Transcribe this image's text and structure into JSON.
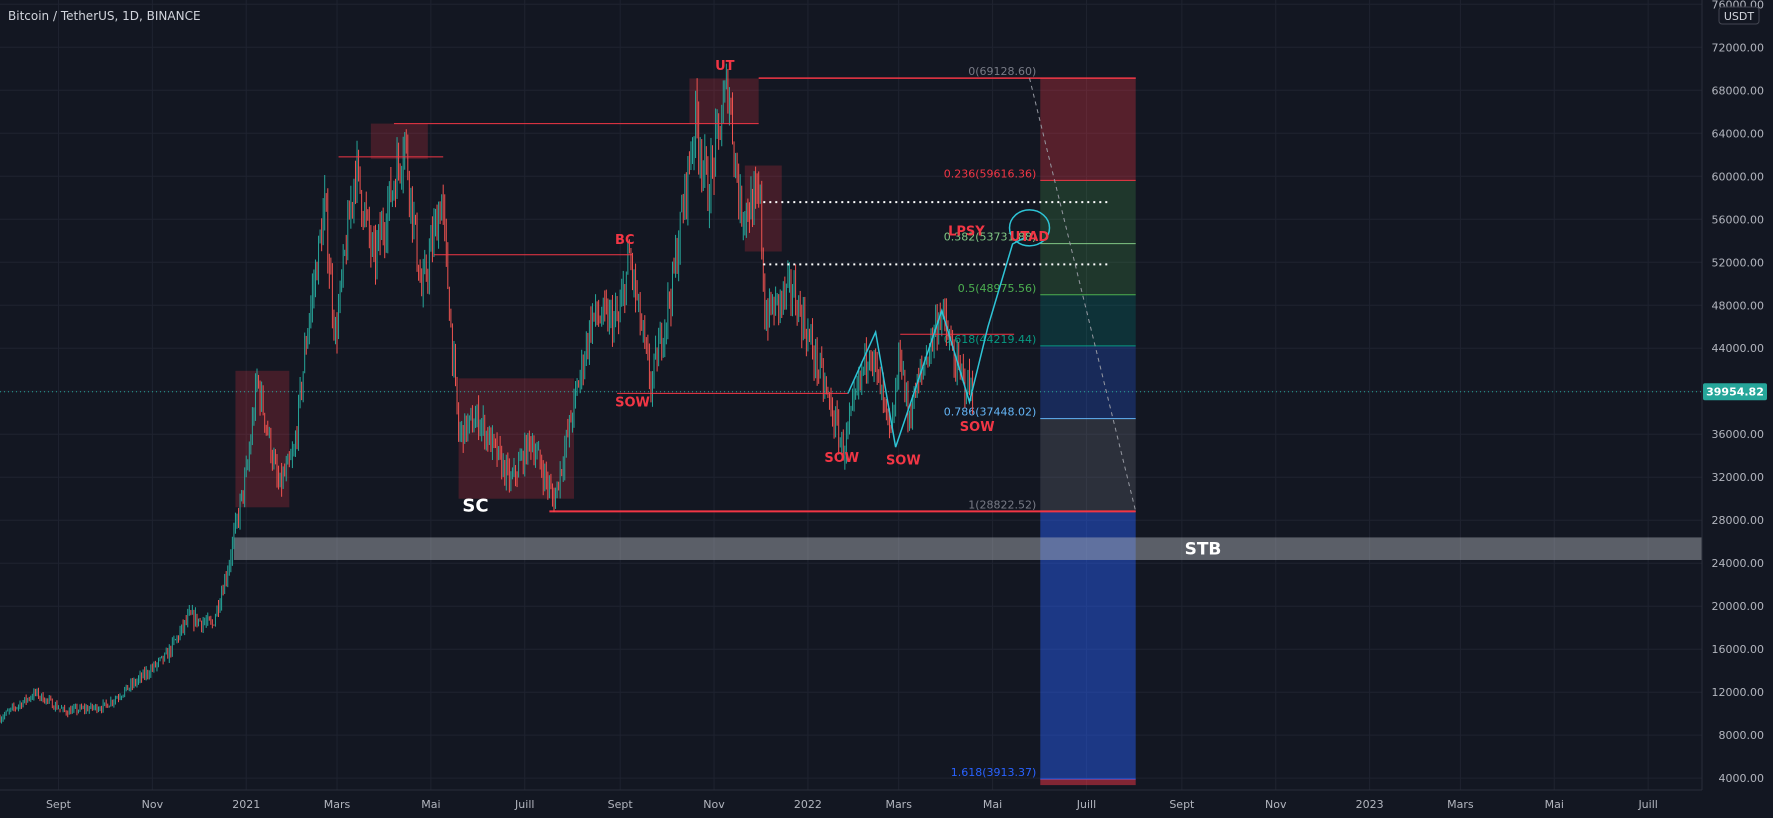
{
  "header": {
    "title": "Bitcoin / TetherUS, 1D, BINANCE",
    "currency": "USDT",
    "last_price": "39954.82"
  },
  "colors": {
    "background": "#131722",
    "grid": "#1f2330",
    "text": "#b2b5be",
    "candle_up": "#26a69a",
    "candle_down": "#ef5350",
    "annotation_red": "#f23645",
    "price_badge": "#26a69a",
    "cyan_path": "#2ec4d6"
  },
  "chart_data": {
    "type": "candlestick",
    "x_axis": {
      "labels": [
        "Sept",
        "Nov",
        "2021",
        "Mars",
        "Mai",
        "Juill",
        "Sept",
        "Nov",
        "2022",
        "Mars",
        "Mai",
        "Juill",
        "Sept",
        "Nov",
        "2023",
        "Mars",
        "Mai",
        "Juill"
      ],
      "dates": [
        "2020-09-01",
        "2020-11-01",
        "2021-01-01",
        "2021-03-01",
        "2021-05-01",
        "2021-07-01",
        "2021-09-01",
        "2021-11-01",
        "2022-01-01",
        "2022-03-01",
        "2022-05-01",
        "2022-07-01",
        "2022-09-01",
        "2022-11-01",
        "2023-01-01",
        "2023-03-01",
        "2023-05-01",
        "2023-07-01"
      ],
      "range": [
        "2020-07-25",
        "2023-08-05"
      ]
    },
    "y_axis": {
      "ticks": [
        4000,
        8000,
        12000,
        16000,
        20000,
        24000,
        28000,
        32000,
        36000,
        40000,
        44000,
        48000,
        52000,
        56000,
        60000,
        64000,
        68000,
        72000,
        76000
      ],
      "tick_labels": [
        "4000.00",
        "8000.00",
        "12000.00",
        "16000.00",
        "20000.00",
        "24000.00",
        "28000.00",
        "32000.00",
        "36000.00",
        "40000.00",
        "44000.00",
        "48000.00",
        "52000.00",
        "56000.00",
        "60000.00",
        "64000.00",
        "68000.00",
        "72000.00",
        "76000.00"
      ],
      "range": [
        2900,
        76400
      ],
      "position": "right"
    },
    "current_price": 39954.82,
    "price_path": [
      [
        "2020-07-25",
        9600
      ],
      [
        "2020-08-17",
        11900
      ],
      [
        "2020-09-05",
        10200
      ],
      [
        "2020-10-01",
        10700
      ],
      [
        "2020-10-21",
        12900
      ],
      [
        "2020-11-10",
        15300
      ],
      [
        "2020-11-25",
        19000
      ],
      [
        "2020-12-10",
        18200
      ],
      [
        "2020-12-20",
        23500
      ],
      [
        "2021-01-02",
        33000
      ],
      [
        "2021-01-08",
        41000
      ],
      [
        "2021-01-14",
        37000
      ],
      [
        "2021-01-22",
        31000
      ],
      [
        "2021-02-01",
        34000
      ],
      [
        "2021-02-10",
        46000
      ],
      [
        "2021-02-21",
        57000
      ],
      [
        "2021-02-28",
        45000
      ],
      [
        "2021-03-13",
        61000
      ],
      [
        "2021-03-25",
        52000
      ],
      [
        "2021-04-14",
        63500
      ],
      [
        "2021-04-25",
        49000
      ],
      [
        "2021-05-08",
        58000
      ],
      [
        "2021-05-19",
        36000
      ],
      [
        "2021-06-01",
        37500
      ],
      [
        "2021-06-22",
        31500
      ],
      [
        "2021-07-05",
        35500
      ],
      [
        "2021-07-20",
        29800
      ],
      [
        "2021-08-14",
        47000
      ],
      [
        "2021-08-31",
        46500
      ],
      [
        "2021-09-07",
        52500
      ],
      [
        "2021-09-21",
        40500
      ],
      [
        "2021-10-05",
        50000
      ],
      [
        "2021-10-20",
        65500
      ],
      [
        "2021-10-28",
        58500
      ],
      [
        "2021-11-10",
        68700
      ],
      [
        "2021-11-18",
        57000
      ],
      [
        "2021-12-01",
        57500
      ],
      [
        "2021-12-04",
        47000
      ],
      [
        "2021-12-22",
        49500
      ],
      [
        "2022-01-10",
        41200
      ],
      [
        "2022-01-24",
        34500
      ],
      [
        "2022-02-10",
        44500
      ],
      [
        "2022-02-24",
        35500
      ],
      [
        "2022-03-02",
        44000
      ],
      [
        "2022-03-07",
        37500
      ],
      [
        "2022-03-28",
        47500
      ],
      [
        "2022-04-08",
        42000
      ],
      [
        "2022-04-18",
        39954
      ]
    ],
    "zones": [
      {
        "from": "2020-12-25",
        "to": "2021-01-29",
        "y_low": 29200,
        "y_high": 41900
      },
      {
        "from": "2021-03-23",
        "to": "2021-04-29",
        "y_low": 61600,
        "y_high": 64900
      },
      {
        "from": "2021-05-19",
        "to": "2021-08-02",
        "y_low": 30000,
        "y_high": 41200
      },
      {
        "from": "2021-10-16",
        "to": "2021-11-30",
        "y_low": 64900,
        "y_high": 69100
      },
      {
        "from": "2021-11-21",
        "to": "2021-12-15",
        "y_low": 53000,
        "y_high": 61000
      },
      {
        "from": "2022-06-01",
        "to": "2022-08-02",
        "y_low": 24300,
        "y_high": 69128.6
      }
    ],
    "levels": [
      {
        "from": "2021-03-02",
        "to": "2021-05-09",
        "price": 61800
      },
      {
        "from": "2021-04-07",
        "to": "2021-11-30",
        "price": 64900
      },
      {
        "from": "2021-05-03",
        "to": "2021-09-09",
        "price": 52700
      },
      {
        "from": "2021-08-30",
        "to": "2022-01-27",
        "price": 39800
      },
      {
        "from": "2022-03-02",
        "to": "2022-05-15",
        "price": 45300
      }
    ],
    "dotted_levels": [
      {
        "from": "2021-12-03",
        "to": "2022-07-15",
        "price": 57600
      },
      {
        "from": "2021-12-03",
        "to": "2022-07-15",
        "price": 51800
      }
    ],
    "fibonacci": {
      "from": "2021-06-27",
      "to": "2022-08-02",
      "levels": [
        {
          "ratio": 0,
          "price": 69128.6,
          "label": "0(69128.60)"
        },
        {
          "ratio": 0.236,
          "price": 59616.36,
          "label": "0.236(59616.36)"
        },
        {
          "ratio": 0.382,
          "price": 53731.88,
          "label": "0.382(53731.88)"
        },
        {
          "ratio": 0.5,
          "price": 48975.56,
          "label": "0.5(48975.56)"
        },
        {
          "ratio": 0.618,
          "price": 44219.44,
          "label": "0.618(44219.44)"
        },
        {
          "ratio": 0.786,
          "price": 37448.02,
          "label": "0.786(37448.02)"
        },
        {
          "ratio": 1,
          "price": 28822.52,
          "label": "1(28822.52)"
        },
        {
          "ratio": 1.618,
          "price": 3913.37,
          "label": "1.618(3913.37)"
        }
      ]
    },
    "stb_band": {
      "price_low": 24300,
      "price_high": 26400,
      "label": "STB"
    },
    "projection_path": [
      [
        "2022-01-27",
        39800
      ],
      [
        "2022-02-14",
        45500
      ],
      [
        "2022-02-27",
        34800
      ],
      [
        "2022-03-29",
        47500
      ],
      [
        "2022-04-16",
        39000
      ],
      [
        "2022-04-28",
        46000
      ],
      [
        "2022-05-14",
        53700
      ],
      [
        "2022-05-22",
        54300
      ]
    ],
    "utad_circle": {
      "date": "2022-05-25",
      "price": 55200
    },
    "projection_dashed": [
      [
        "2022-05-25",
        69128.6
      ],
      [
        "2022-08-02",
        28822.52
      ]
    ],
    "annotations": [
      {
        "text": "SC",
        "date": "2021-05-30",
        "price": 28800
      },
      {
        "text": "BC",
        "date": "2021-09-04",
        "price": 53700
      },
      {
        "text": "UT",
        "date": "2021-11-08",
        "price": 69900
      },
      {
        "text": "SOW",
        "date": "2021-09-09",
        "price": 38600
      },
      {
        "text": "SOW",
        "date": "2022-01-23",
        "price": 33400
      },
      {
        "text": "SOW",
        "date": "2022-03-04",
        "price": 33200
      },
      {
        "text": "SOW",
        "date": "2022-04-21",
        "price": 36300
      },
      {
        "text": "LPSY",
        "date": "2022-04-14",
        "price": 54500
      },
      {
        "text": "UTAD",
        "date": "2022-05-25",
        "price": 54000
      }
    ]
  }
}
